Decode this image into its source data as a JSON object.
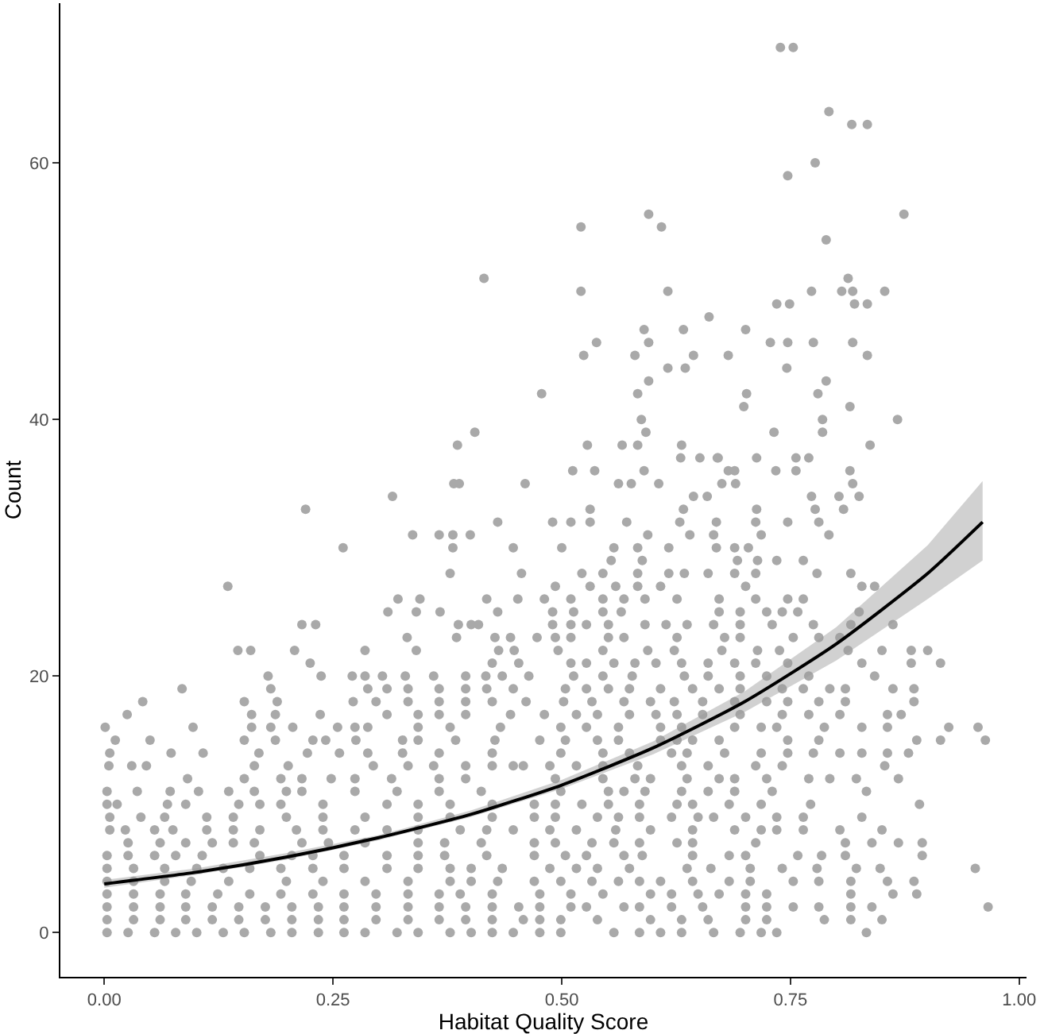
{
  "chart_data": {
    "type": "scatter",
    "xlabel": "Habitat Quality Score",
    "ylabel": "Count",
    "marker": "circle",
    "grid": false,
    "xlim": [
      -0.048,
      1.008
    ],
    "xticks": [
      {
        "value": 0,
        "label": "0.00"
      },
      {
        "value": 0.25,
        "label": "0.25"
      },
      {
        "value": 0.5,
        "label": "0.50"
      },
      {
        "value": 0.75,
        "label": "0.75"
      },
      {
        "value": 1,
        "label": "1.00"
      }
    ],
    "ylim": [
      -3.45,
      72.45
    ],
    "yticks": [
      0,
      20,
      40,
      60
    ],
    "series": [
      {
        "type": "line",
        "color": "#000000",
        "line_style": "solid",
        "marker": "none",
        "x": [
          0,
          0.1,
          0.2,
          0.3,
          0.4,
          0.5,
          0.6,
          0.7,
          0.8,
          0.9,
          0.96
        ],
        "values": [
          3.8,
          4.7,
          5.9,
          7.4,
          9.2,
          11.5,
          14.4,
          18.0,
          22.5,
          28.0,
          32.0
        ],
        "lower": [
          3.5,
          4.5,
          5.7,
          7.2,
          9.0,
          11.2,
          13.9,
          17.2,
          21.2,
          26.0,
          29.0
        ],
        "upper": [
          4.1,
          5.0,
          6.2,
          7.6,
          9.5,
          11.9,
          14.9,
          18.8,
          23.8,
          30.2,
          35.2
        ]
      },
      {
        "color": "#a9a9a9",
        "x": [
          0.003,
          0.026,
          0.055,
          0.078,
          0.101,
          0.13,
          0.153,
          0.182,
          0.205,
          0.234,
          0.262,
          0.285,
          0.32,
          0.343,
          0.378,
          0.401,
          0.424,
          0.447,
          0.476,
          0.499,
          0.557,
          0.585,
          0.608,
          0.631,
          0.666,
          0.695,
          0.718,
          0.735,
          0.833
        ],
        "values": [
          0,
          0,
          0,
          0,
          0,
          0,
          0,
          0,
          0,
          0,
          0,
          0,
          0,
          0,
          0,
          0,
          0,
          0,
          0,
          0,
          0,
          0,
          0,
          0,
          0,
          0,
          0,
          0,
          0
        ]
      },
      {
        "color": "#a9a9a9",
        "x": [
          0.003,
          0.032,
          0.061,
          0.089,
          0.118,
          0.147,
          0.176,
          0.205,
          0.234,
          0.262,
          0.297,
          0.332,
          0.366,
          0.395,
          0.424,
          0.458,
          0.476,
          0.499,
          0.539,
          0.597,
          0.631,
          0.66,
          0.701,
          0.724,
          0.787,
          0.816,
          0.85
        ],
        "values": [
          1,
          1,
          1,
          1,
          1,
          1,
          1,
          1,
          1,
          1,
          1,
          1,
          1,
          1,
          1,
          1,
          1,
          1,
          1,
          1,
          1,
          1,
          1,
          1,
          1,
          1,
          1
        ]
      },
      {
        "color": "#a9a9a9",
        "x": [
          0.003,
          0.032,
          0.061,
          0.089,
          0.118,
          0.147,
          0.176,
          0.205,
          0.234,
          0.262,
          0.297,
          0.332,
          0.366,
          0.395,
          0.424,
          0.453,
          0.476,
          0.51,
          0.527,
          0.568,
          0.585,
          0.62,
          0.654,
          0.701,
          0.724,
          0.753,
          0.781,
          0.816,
          0.839,
          0.966
        ],
        "values": [
          2,
          2,
          2,
          2,
          2,
          2,
          2,
          2,
          2,
          2,
          2,
          2,
          2,
          2,
          2,
          2,
          2,
          2,
          2,
          2,
          2,
          2,
          2,
          2,
          2,
          2,
          2,
          2,
          2,
          2
        ]
      },
      {
        "color": "#a9a9a9",
        "x": [
          0.003,
          0.032,
          0.061,
          0.089,
          0.124,
          0.159,
          0.193,
          0.228,
          0.262,
          0.297,
          0.332,
          0.366,
          0.389,
          0.424,
          0.476,
          0.51,
          0.545,
          0.597,
          0.62,
          0.649,
          0.672,
          0.701,
          0.724,
          0.816,
          0.862,
          0.888
        ],
        "values": [
          3,
          3,
          3,
          3,
          3,
          3,
          3,
          3,
          3,
          3,
          3,
          3,
          3,
          3,
          3,
          3,
          3,
          3,
          3,
          3,
          3,
          3,
          3,
          3,
          3,
          3
        ]
      },
      {
        "color": "#a9a9a9",
        "x": [
          0.003,
          0.032,
          0.066,
          0.095,
          0.136,
          0.199,
          0.239,
          0.285,
          0.332,
          0.378,
          0.401,
          0.43,
          0.47,
          0.499,
          0.533,
          0.562,
          0.585,
          0.608,
          0.643,
          0.683,
          0.706,
          0.753,
          0.781,
          0.816,
          0.856,
          0.885
        ],
        "values": [
          4,
          4,
          4,
          4,
          4,
          4,
          4,
          4,
          4,
          4,
          4,
          4,
          4,
          4,
          4,
          4,
          4,
          4,
          4,
          4,
          4,
          4,
          4,
          4,
          4,
          4
        ]
      },
      {
        "color": "#a9a9a9",
        "x": [
          0.003,
          0.032,
          0.066,
          0.101,
          0.13,
          0.159,
          0.193,
          0.228,
          0.262,
          0.309,
          0.343,
          0.378,
          0.401,
          0.435,
          0.487,
          0.516,
          0.539,
          0.574,
          0.637,
          0.663,
          0.706,
          0.741,
          0.779,
          0.822,
          0.848,
          0.952
        ],
        "values": [
          5,
          5,
          5,
          5,
          5,
          5,
          5,
          5,
          5,
          5,
          5,
          5,
          5,
          5,
          5,
          5,
          5,
          5,
          5,
          5,
          5,
          5,
          5,
          5,
          5,
          5
        ]
      },
      {
        "color": "#a9a9a9",
        "x": [
          0.003,
          0.026,
          0.055,
          0.078,
          0.107,
          0.17,
          0.205,
          0.228,
          0.262,
          0.309,
          0.343,
          0.372,
          0.418,
          0.47,
          0.504,
          0.527,
          0.568,
          0.588,
          0.643,
          0.683,
          0.701,
          0.758,
          0.784,
          0.81,
          0.894
        ],
        "values": [
          6,
          6,
          6,
          6,
          6,
          6,
          6,
          6,
          6,
          6,
          6,
          6,
          6,
          6,
          6,
          6,
          6,
          6,
          6,
          6,
          6,
          6,
          6,
          6,
          6
        ]
      },
      {
        "color": "#a9a9a9",
        "x": [
          0.026,
          0.061,
          0.089,
          0.118,
          0.141,
          0.164,
          0.216,
          0.245,
          0.285,
          0.343,
          0.372,
          0.412,
          0.47,
          0.493,
          0.533,
          0.557,
          0.585,
          0.626,
          0.643,
          0.712,
          0.81,
          0.839,
          0.868,
          0.894
        ],
        "values": [
          7,
          7,
          7,
          7,
          7,
          7,
          7,
          7,
          7,
          7,
          7,
          7,
          7,
          7,
          7,
          7,
          7,
          7,
          7,
          7,
          7,
          7,
          7,
          7
        ]
      },
      {
        "color": "#a9a9a9",
        "x": [
          0.006,
          0.023,
          0.055,
          0.075,
          0.112,
          0.141,
          0.17,
          0.21,
          0.239,
          0.274,
          0.309,
          0.343,
          0.389,
          0.418,
          0.447,
          0.487,
          0.516,
          0.559,
          0.597,
          0.643,
          0.689,
          0.718,
          0.735,
          0.764,
          0.804,
          0.85
        ],
        "values": [
          8,
          8,
          8,
          8,
          8,
          8,
          8,
          8,
          8,
          8,
          8,
          8,
          8,
          8,
          8,
          8,
          8,
          8,
          8,
          8,
          8,
          8,
          8,
          8,
          8,
          8
        ]
      },
      {
        "color": "#a9a9a9",
        "x": [
          0.006,
          0.04,
          0.066,
          0.112,
          0.141,
          0.199,
          0.239,
          0.285,
          0.343,
          0.378,
          0.424,
          0.47,
          0.493,
          0.539,
          0.562,
          0.585,
          0.62,
          0.649,
          0.666,
          0.701,
          0.735,
          0.764,
          0.828
        ],
        "values": [
          9,
          9,
          9,
          9,
          9,
          9,
          9,
          9,
          9,
          9,
          9,
          9,
          9,
          9,
          9,
          9,
          9,
          9,
          9,
          9,
          9,
          9,
          9
        ]
      },
      {
        "color": "#a9a9a9",
        "x": [
          0.003,
          0.014,
          0.069,
          0.089,
          0.147,
          0.17,
          0.193,
          0.239,
          0.309,
          0.343,
          0.378,
          0.424,
          0.47,
          0.493,
          0.522,
          0.551,
          0.585,
          0.626,
          0.643,
          0.683,
          0.718,
          0.772,
          0.891
        ],
        "values": [
          10,
          10,
          10,
          10,
          10,
          10,
          10,
          10,
          10,
          10,
          10,
          10,
          10,
          10,
          10,
          10,
          10,
          10,
          10,
          10,
          10,
          10,
          10
        ]
      },
      {
        "color": "#a9a9a9",
        "x": [
          0.003,
          0.036,
          0.072,
          0.103,
          0.136,
          0.164,
          0.199,
          0.216,
          0.274,
          0.32,
          0.366,
          0.412,
          0.499,
          0.551,
          0.568,
          0.591,
          0.631,
          0.66,
          0.689,
          0.73,
          0.833
        ],
        "values": [
          11,
          11,
          11,
          11,
          11,
          11,
          11,
          11,
          11,
          11,
          11,
          11,
          11,
          11,
          11,
          11,
          11,
          11,
          11,
          11,
          11
        ]
      },
      {
        "color": "#a9a9a9",
        "x": [
          0.091,
          0.153,
          0.193,
          0.216,
          0.248,
          0.274,
          0.314,
          0.366,
          0.395,
          0.493,
          0.545,
          0.58,
          0.597,
          0.637,
          0.672,
          0.689,
          0.724,
          0.77,
          0.793,
          0.822,
          0.868
        ],
        "values": [
          12,
          12,
          12,
          12,
          12,
          12,
          12,
          12,
          12,
          12,
          12,
          12,
          12,
          12,
          12,
          12,
          12,
          12,
          12,
          12,
          12
        ]
      },
      {
        "color": "#a9a9a9",
        "x": [
          0.005,
          0.03,
          0.046,
          0.164,
          0.201,
          0.294,
          0.332,
          0.36,
          0.395,
          0.424,
          0.447,
          0.458,
          0.487,
          0.516,
          0.545,
          0.583,
          0.631,
          0.66,
          0.712,
          0.741,
          0.853
        ],
        "values": [
          13,
          13,
          13,
          13,
          13,
          13,
          13,
          13,
          13,
          13,
          13,
          13,
          13,
          13,
          13,
          13,
          13,
          13,
          13,
          13,
          13
        ]
      },
      {
        "color": "#a9a9a9",
        "x": [
          0.006,
          0.073,
          0.108,
          0.169,
          0.222,
          0.257,
          0.288,
          0.326,
          0.366,
          0.424,
          0.499,
          0.545,
          0.574,
          0.62,
          0.637,
          0.678,
          0.718,
          0.747,
          0.775,
          0.804,
          0.828,
          0.856,
          0.879
        ],
        "values": [
          14,
          14,
          14,
          14,
          14,
          14,
          14,
          14,
          14,
          14,
          14,
          14,
          14,
          14,
          14,
          14,
          14,
          14,
          14,
          14,
          14,
          14,
          14
        ]
      },
      {
        "color": "#a9a9a9",
        "x": [
          0.012,
          0.05,
          0.153,
          0.187,
          0.228,
          0.242,
          0.275,
          0.326,
          0.343,
          0.384,
          0.427,
          0.476,
          0.504,
          0.539,
          0.562,
          0.608,
          0.626,
          0.643,
          0.672,
          0.747,
          0.781,
          0.888,
          0.914,
          0.963
        ],
        "values": [
          15,
          15,
          15,
          15,
          15,
          15,
          15,
          15,
          15,
          15,
          15,
          15,
          15,
          15,
          15,
          15,
          15,
          15,
          15,
          15,
          15,
          15,
          15,
          15
        ]
      },
      {
        "color": "#a9a9a9",
        "x": [
          0.001,
          0.097,
          0.161,
          0.182,
          0.206,
          0.255,
          0.274,
          0.288,
          0.343,
          0.378,
          0.433,
          0.499,
          0.527,
          0.562,
          0.608,
          0.631,
          0.689,
          0.718,
          0.735,
          0.787,
          0.828,
          0.856,
          0.923,
          0.955
        ],
        "values": [
          16,
          16,
          16,
          16,
          16,
          16,
          16,
          16,
          16,
          16,
          16,
          16,
          16,
          16,
          16,
          16,
          16,
          16,
          16,
          16,
          16,
          16,
          16,
          16
        ]
      },
      {
        "color": "#a9a9a9",
        "x": [
          0.025,
          0.161,
          0.187,
          0.236,
          0.309,
          0.343,
          0.366,
          0.395,
          0.444,
          0.481,
          0.516,
          0.539,
          0.574,
          0.603,
          0.626,
          0.654,
          0.695,
          0.741,
          0.77,
          0.804,
          0.856,
          0.871
        ],
        "values": [
          17,
          17,
          17,
          17,
          17,
          17,
          17,
          17,
          17,
          17,
          17,
          17,
          17,
          17,
          17,
          17,
          17,
          17,
          17,
          17,
          17,
          17
        ]
      },
      {
        "color": "#a9a9a9",
        "x": [
          0.042,
          0.153,
          0.189,
          0.272,
          0.297,
          0.332,
          0.366,
          0.395,
          0.424,
          0.461,
          0.502,
          0.533,
          0.568,
          0.597,
          0.623,
          0.654,
          0.689,
          0.724,
          0.747,
          0.781,
          0.81,
          0.885
        ],
        "values": [
          18,
          18,
          18,
          18,
          18,
          18,
          18,
          18,
          18,
          18,
          18,
          18,
          18,
          18,
          18,
          18,
          18,
          18,
          18,
          18,
          18,
          18
        ]
      },
      {
        "color": "#a9a9a9",
        "x": [
          0.085,
          0.182,
          0.288,
          0.309,
          0.332,
          0.366,
          0.395,
          0.418,
          0.447,
          0.504,
          0.527,
          0.551,
          0.574,
          0.608,
          0.643,
          0.672,
          0.695,
          0.741,
          0.764,
          0.793,
          0.81,
          0.862,
          0.885
        ],
        "values": [
          19,
          19,
          19,
          19,
          19,
          19,
          19,
          19,
          19,
          19,
          19,
          19,
          19,
          19,
          19,
          19,
          19,
          19,
          19,
          19,
          19,
          19,
          19
        ]
      },
      {
        "color": "#a9a9a9",
        "x": [
          0.179,
          0.237,
          0.271,
          0.285,
          0.304,
          0.329,
          0.36,
          0.395,
          0.417,
          0.435,
          0.464,
          0.513,
          0.545,
          0.577,
          0.634,
          0.66,
          0.695,
          0.724,
          0.77,
          0.842
        ],
        "values": [
          20,
          20,
          20,
          20,
          20,
          20,
          20,
          20,
          20,
          20,
          20,
          20,
          20,
          20,
          20,
          20,
          20,
          20,
          20,
          20
        ]
      },
      {
        "color": "#a9a9a9",
        "x": [
          0.225,
          0.424,
          0.453,
          0.51,
          0.527,
          0.557,
          0.58,
          0.603,
          0.631,
          0.66,
          0.689,
          0.712,
          0.747,
          0.828,
          0.882,
          0.914
        ],
        "values": [
          21,
          21,
          21,
          21,
          21,
          21,
          21,
          21,
          21,
          21,
          21,
          21,
          21,
          21,
          21,
          21
        ]
      },
      {
        "color": "#a9a9a9",
        "x": [
          0.146,
          0.16,
          0.208,
          0.285,
          0.341,
          0.431,
          0.448,
          0.496,
          0.545,
          0.594,
          0.623,
          0.675,
          0.714,
          0.738,
          0.813,
          0.85,
          0.882,
          0.9
        ],
        "values": [
          22,
          22,
          22,
          22,
          22,
          22,
          22,
          22,
          22,
          22,
          22,
          22,
          22,
          22,
          22,
          22,
          22,
          22
        ]
      },
      {
        "color": "#a9a9a9",
        "x": [
          0.331,
          0.385,
          0.427,
          0.444,
          0.473,
          0.493,
          0.51,
          0.551,
          0.568,
          0.626,
          0.678,
          0.695,
          0.753,
          0.781,
          0.804
        ],
        "values": [
          23,
          23,
          23,
          23,
          23,
          23,
          23,
          23,
          23,
          23,
          23,
          23,
          23,
          23,
          23
        ]
      },
      {
        "color": "#a9a9a9",
        "x": [
          0.216,
          0.231,
          0.387,
          0.401,
          0.409,
          0.49,
          0.51,
          0.527,
          0.551,
          0.591,
          0.614,
          0.637,
          0.666,
          0.695,
          0.73,
          0.775,
          0.816,
          0.862
        ],
        "values": [
          24,
          24,
          24,
          24,
          24,
          24,
          24,
          24,
          24,
          24,
          24,
          24,
          24,
          24,
          24,
          24,
          24,
          24
        ]
      },
      {
        "color": "#a9a9a9",
        "x": [
          0.31,
          0.341,
          0.367,
          0.43,
          0.49,
          0.513,
          0.545,
          0.565,
          0.672,
          0.695,
          0.724,
          0.741,
          0.758,
          0.825
        ],
        "values": [
          25,
          25,
          25,
          25,
          25,
          25,
          25,
          25,
          25,
          25,
          25,
          25,
          25,
          25
        ]
      },
      {
        "color": "#a9a9a9",
        "x": [
          0.321,
          0.345,
          0.418,
          0.452,
          0.481,
          0.51,
          0.545,
          0.568,
          0.591,
          0.626,
          0.672,
          0.712,
          0.747,
          0.764
        ],
        "values": [
          26,
          26,
          26,
          26,
          26,
          26,
          26,
          26,
          26,
          26,
          26,
          26,
          26,
          26
        ]
      },
      {
        "color": "#a9a9a9",
        "x": [
          0.135,
          0.493,
          0.531,
          0.559,
          0.583,
          0.608,
          0.701,
          0.828,
          0.842
        ],
        "values": [
          27,
          27,
          27,
          27,
          27,
          27,
          27,
          27,
          27
        ]
      },
      {
        "color": "#a9a9a9",
        "x": [
          0.378,
          0.456,
          0.522,
          0.545,
          0.583,
          0.617,
          0.634,
          0.66,
          0.689,
          0.712,
          0.779,
          0.816
        ],
        "values": [
          28,
          28,
          28,
          28,
          28,
          28,
          28,
          28,
          28,
          28,
          28,
          28
        ]
      },
      {
        "color": "#a9a9a9",
        "x": [
          0.554,
          0.588,
          0.692,
          0.714,
          0.735,
          0.764
        ],
        "values": [
          29,
          29,
          29,
          29,
          29,
          29
        ]
      },
      {
        "color": "#a9a9a9",
        "x": [
          0.261,
          0.381,
          0.447,
          0.5,
          0.557,
          0.583,
          0.617,
          0.669,
          0.689,
          0.704
        ],
        "values": [
          30,
          30,
          30,
          30,
          30,
          30,
          30,
          30,
          30,
          30
        ]
      },
      {
        "color": "#a9a9a9",
        "x": [
          0.337,
          0.366,
          0.381,
          0.4,
          0.594,
          0.64,
          0.666,
          0.718,
          0.792
        ],
        "values": [
          31,
          31,
          31,
          31,
          31,
          31,
          31,
          31,
          31
        ]
      },
      {
        "color": "#a9a9a9",
        "x": [
          0.43,
          0.49,
          0.51,
          0.531,
          0.571,
          0.629,
          0.669,
          0.712,
          0.747,
          0.781
        ],
        "values": [
          32,
          32,
          32,
          32,
          32,
          32,
          32,
          32,
          32,
          32
        ]
      },
      {
        "color": "#a9a9a9",
        "x": [
          0.22,
          0.531,
          0.633,
          0.713,
          0.777,
          0.808
        ],
        "values": [
          33,
          33,
          33,
          33,
          33,
          33
        ]
      },
      {
        "color": "#a9a9a9",
        "x": [
          0.315,
          0.644,
          0.659,
          0.773,
          0.803,
          0.825
        ],
        "values": [
          34,
          34,
          34,
          34,
          34,
          34
        ]
      },
      {
        "color": "#a9a9a9",
        "x": [
          0.382,
          0.388,
          0.46,
          0.562,
          0.576,
          0.606,
          0.675,
          0.69,
          0.818
        ],
        "values": [
          35,
          35,
          35,
          35,
          35,
          35,
          35,
          35,
          35
        ]
      },
      {
        "color": "#a9a9a9",
        "x": [
          0.512,
          0.536,
          0.59,
          0.682,
          0.689,
          0.734,
          0.756,
          0.815
        ],
        "values": [
          36,
          36,
          36,
          36,
          36,
          36,
          36,
          36
        ]
      },
      {
        "color": "#a9a9a9",
        "x": [
          0.63,
          0.651,
          0.67,
          0.671,
          0.713,
          0.756,
          0.77
        ],
        "values": [
          37,
          37,
          37,
          37,
          37,
          37,
          37
        ]
      },
      {
        "color": "#a9a9a9",
        "x": [
          0.386,
          0.528,
          0.566,
          0.583,
          0.631,
          0.837
        ],
        "values": [
          38,
          38,
          38,
          38,
          38,
          38
        ]
      },
      {
        "color": "#a9a9a9",
        "x": [
          0.739,
          0.753,
          0.792,
          0.817,
          0.834,
          0.777,
          0.747,
          0.595,
          0.521,
          0.609,
          0.874,
          0.789,
          0.813,
          0.521,
          0.616,
          0.773,
          0.806,
          0.818,
          0.853,
          0.735,
          0.749,
          0.82,
          0.834,
          0.661,
          0.59,
          0.633,
          0.701,
          0.538,
          0.595,
          0.728,
          0.747,
          0.775,
          0.818,
          0.524,
          0.58,
          0.644,
          0.682,
          0.834,
          0.616,
          0.635,
          0.746,
          0.595,
          0.789,
          0.478,
          0.583,
          0.702,
          0.78,
          0.699,
          0.815,
          0.587,
          0.785,
          0.867,
          0.592,
          0.732,
          0.785,
          0.405,
          0.415
        ],
        "values": [
          69,
          69,
          64,
          63,
          63,
          60,
          59,
          56,
          55,
          55,
          56,
          54,
          51,
          50,
          50,
          50,
          50,
          50,
          50,
          49,
          49,
          49,
          49,
          48,
          47,
          47,
          47,
          46,
          46,
          46,
          46,
          46,
          46,
          45,
          45,
          45,
          45,
          45,
          44,
          44,
          44,
          43,
          43,
          42,
          42,
          42,
          42,
          41,
          41,
          40,
          40,
          40,
          39,
          39,
          39,
          39,
          51
        ]
      }
    ]
  }
}
